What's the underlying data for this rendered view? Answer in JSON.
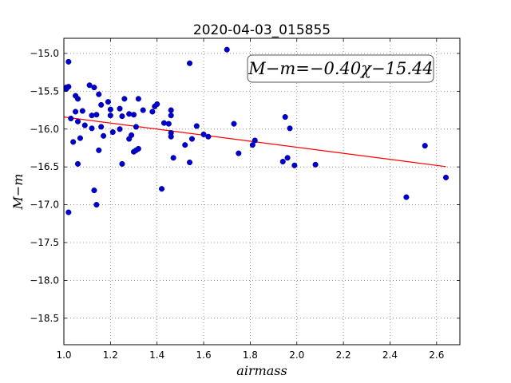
{
  "chart_data": {
    "type": "scatter",
    "title": "2020-04-03_015855",
    "xlabel": "airmass",
    "ylabel": "M−m",
    "xlim": [
      1.0,
      2.7
    ],
    "ylim": [
      -14.8,
      -18.85
    ],
    "y_inverted": true,
    "grid": true,
    "x_ticks": [
      1.0,
      1.2,
      1.4,
      1.6,
      1.8,
      2.0,
      2.2,
      2.4,
      2.6
    ],
    "x_tick_labels": [
      "1.0",
      "1.2",
      "1.4",
      "1.6",
      "1.8",
      "2.0",
      "2.2",
      "2.4",
      "2.6"
    ],
    "y_ticks": [
      -15.0,
      -15.5,
      -16.0,
      -16.5,
      -17.0,
      -17.5,
      -18.0,
      -18.5
    ],
    "y_tick_labels": [
      "−15.0",
      "−15.5",
      "−16.0",
      "−16.5",
      "−17.0",
      "−17.5",
      "−18.0",
      "−18.5"
    ],
    "annotation": "M−m=−0.40χ−15.44",
    "fit": {
      "slope": -0.4,
      "intercept": -15.44,
      "x_range": [
        1.0,
        2.64
      ],
      "color": "#ff0000"
    },
    "point_color": "#0000cc",
    "points": [
      [
        1.01,
        -15.45
      ],
      [
        1.01,
        -15.47
      ],
      [
        1.02,
        -15.11
      ],
      [
        1.02,
        -15.44
      ],
      [
        1.02,
        -17.1
      ],
      [
        1.03,
        -15.86
      ],
      [
        1.04,
        -16.17
      ],
      [
        1.05,
        -15.56
      ],
      [
        1.05,
        -15.77
      ],
      [
        1.06,
        -15.6
      ],
      [
        1.06,
        -15.9
      ],
      [
        1.06,
        -16.46
      ],
      [
        1.07,
        -16.12
      ],
      [
        1.08,
        -15.76
      ],
      [
        1.09,
        -15.95
      ],
      [
        1.11,
        -15.42
      ],
      [
        1.12,
        -15.82
      ],
      [
        1.12,
        -15.99
      ],
      [
        1.13,
        -15.45
      ],
      [
        1.13,
        -16.81
      ],
      [
        1.14,
        -15.81
      ],
      [
        1.14,
        -17.0
      ],
      [
        1.15,
        -15.54
      ],
      [
        1.15,
        -16.28
      ],
      [
        1.16,
        -15.68
      ],
      [
        1.16,
        -15.97
      ],
      [
        1.17,
        -16.09
      ],
      [
        1.19,
        -15.64
      ],
      [
        1.2,
        -15.74
      ],
      [
        1.2,
        -15.82
      ],
      [
        1.21,
        -16.04
      ],
      [
        1.24,
        -16.0
      ],
      [
        1.24,
        -15.73
      ],
      [
        1.25,
        -15.83
      ],
      [
        1.25,
        -16.46
      ],
      [
        1.26,
        -15.6
      ],
      [
        1.28,
        -15.8
      ],
      [
        1.28,
        -16.13
      ],
      [
        1.29,
        -16.08
      ],
      [
        1.3,
        -15.81
      ],
      [
        1.3,
        -16.3
      ],
      [
        1.31,
        -15.97
      ],
      [
        1.31,
        -16.28
      ],
      [
        1.32,
        -15.6
      ],
      [
        1.32,
        -16.26
      ],
      [
        1.34,
        -15.75
      ],
      [
        1.38,
        -15.77
      ],
      [
        1.39,
        -15.7
      ],
      [
        1.4,
        -15.67
      ],
      [
        1.42,
        -16.79
      ],
      [
        1.43,
        -15.92
      ],
      [
        1.45,
        -15.93
      ],
      [
        1.46,
        -15.82
      ],
      [
        1.46,
        -15.75
      ],
      [
        1.46,
        -16.05
      ],
      [
        1.46,
        -16.1
      ],
      [
        1.47,
        -16.38
      ],
      [
        1.52,
        -16.21
      ],
      [
        1.54,
        -15.13
      ],
      [
        1.54,
        -16.44
      ],
      [
        1.55,
        -16.13
      ],
      [
        1.57,
        -15.96
      ],
      [
        1.6,
        -16.07
      ],
      [
        1.62,
        -16.1
      ],
      [
        1.7,
        -14.95
      ],
      [
        1.73,
        -15.93
      ],
      [
        1.75,
        -16.32
      ],
      [
        1.81,
        -16.21
      ],
      [
        1.82,
        -16.15
      ],
      [
        1.94,
        -16.43
      ],
      [
        1.95,
        -15.84
      ],
      [
        1.96,
        -16.38
      ],
      [
        1.97,
        -15.99
      ],
      [
        1.99,
        -16.48
      ],
      [
        2.08,
        -16.47
      ],
      [
        2.47,
        -16.9
      ],
      [
        2.55,
        -16.22
      ],
      [
        2.64,
        -16.64
      ]
    ]
  }
}
